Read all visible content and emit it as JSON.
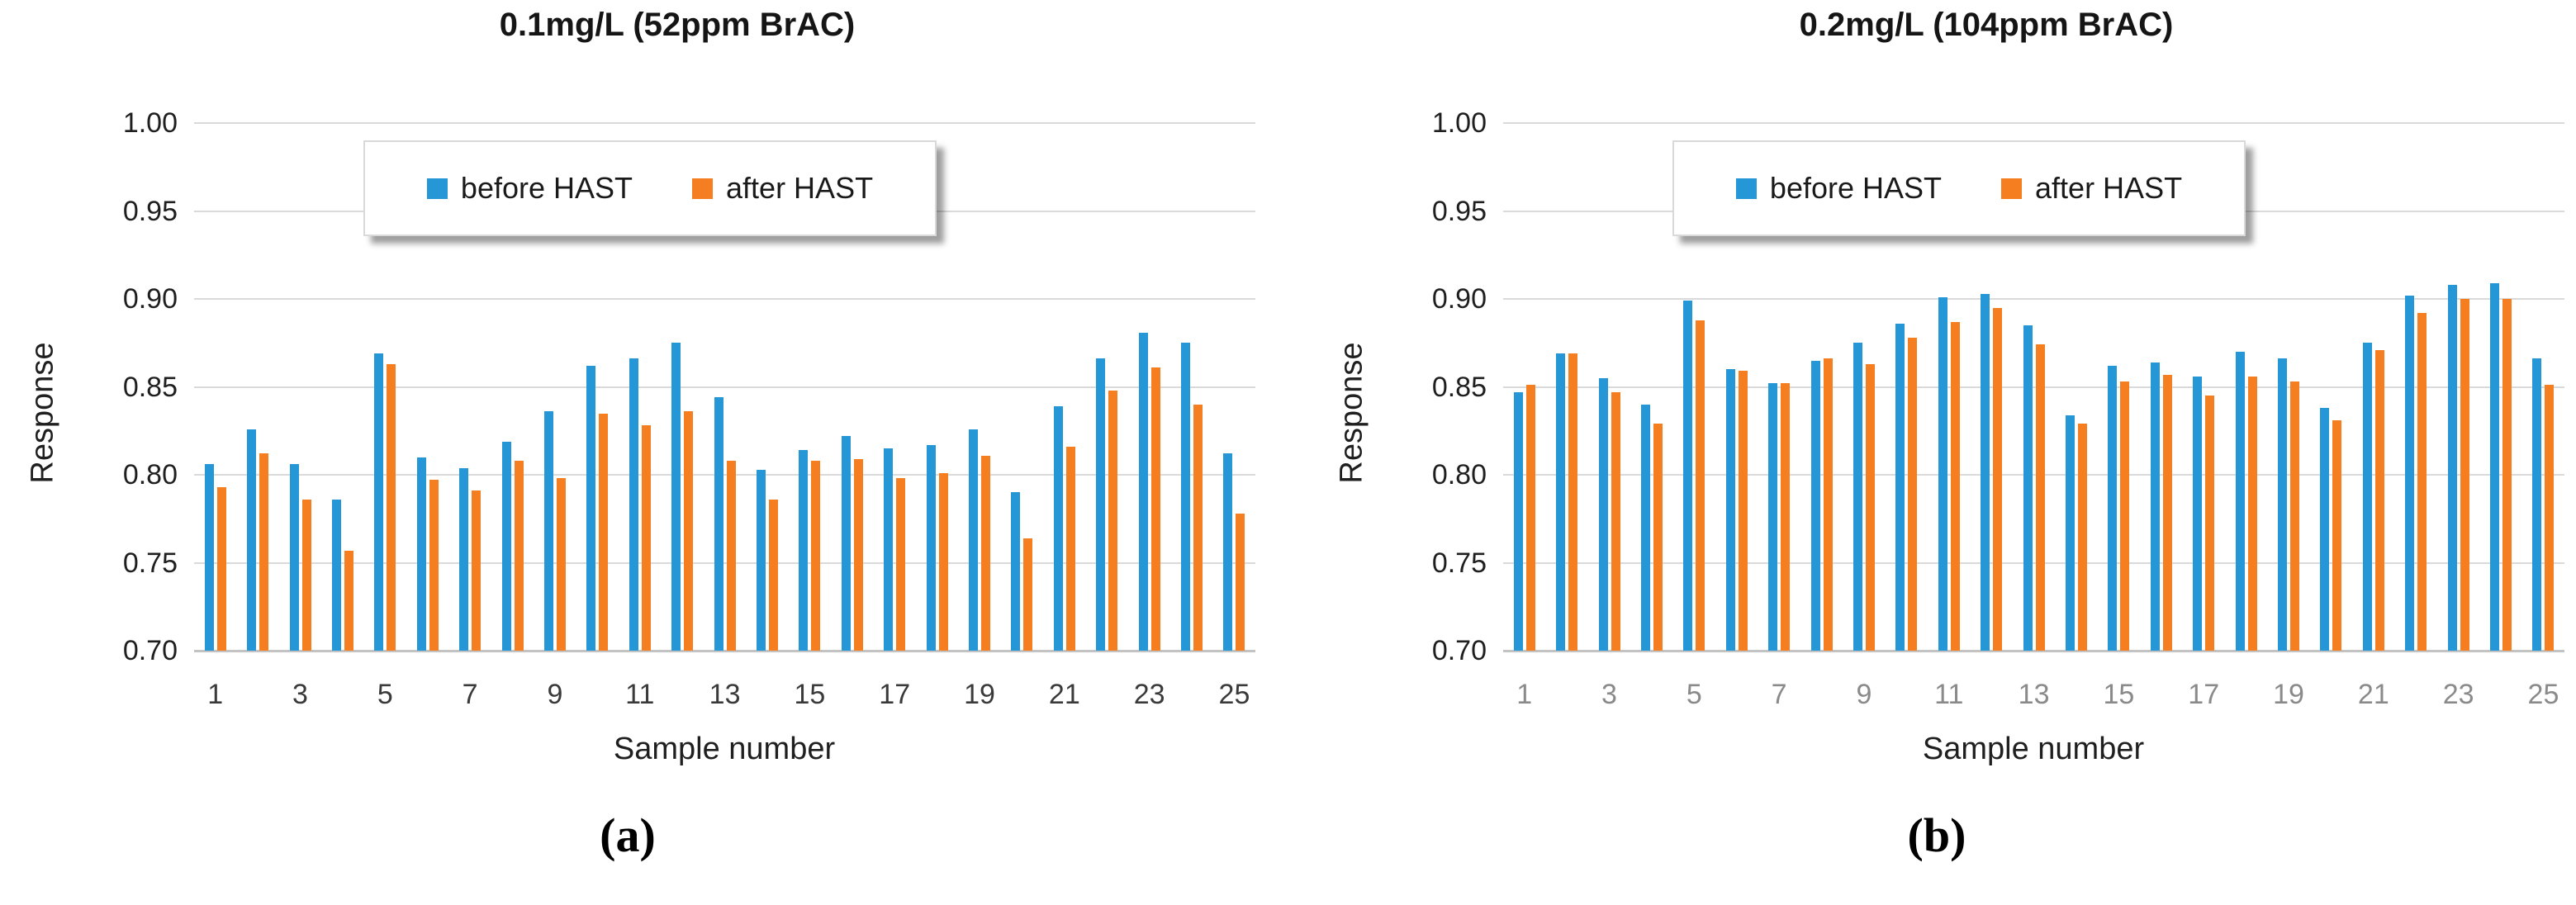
{
  "figure": {
    "caption_a": "(a)",
    "caption_b": "(b)"
  },
  "legend": {
    "before_label": "before HAST",
    "after_label": "after HAST"
  },
  "colors": {
    "before": "#2697d6",
    "after": "#f57e20",
    "gridline": "#dadada",
    "axis_text": "#1f1f1f",
    "x_ticks_chart_a": "#3a3a3a",
    "x_ticks_chart_b": "#8a8a8a"
  },
  "chart_data": [
    {
      "type": "bar",
      "title": "0.1mg/L (52ppm BrAC)",
      "xlabel": "Sample number",
      "ylabel": "Response",
      "caption": "(a)",
      "ylim": [
        0.7,
        1.0
      ],
      "yticks": [
        "1.00",
        "0.95",
        "0.90",
        "0.85",
        "0.80",
        "0.75",
        "0.70"
      ],
      "categories": [
        1,
        2,
        3,
        4,
        5,
        6,
        7,
        8,
        9,
        10,
        11,
        12,
        13,
        14,
        15,
        16,
        17,
        18,
        19,
        20,
        21,
        22,
        23,
        24,
        25
      ],
      "x_tick_labels": [
        "1",
        "3",
        "5",
        "7",
        "9",
        "11",
        "13",
        "15",
        "17",
        "19",
        "21",
        "23",
        "25"
      ],
      "grid": true,
      "legend_position": "top-center",
      "x_tick_color": "#3a3a3a",
      "series": [
        {
          "name": "before HAST",
          "color": "#2697d6",
          "values": [
            0.806,
            0.826,
            0.806,
            0.786,
            0.869,
            0.81,
            0.804,
            0.819,
            0.836,
            0.862,
            0.866,
            0.875,
            0.844,
            0.803,
            0.814,
            0.822,
            0.815,
            0.817,
            0.826,
            0.79,
            0.839,
            0.866,
            0.881,
            0.875,
            0.812
          ]
        },
        {
          "name": "after HAST",
          "color": "#f57e20",
          "values": [
            0.793,
            0.812,
            0.786,
            0.757,
            0.863,
            0.797,
            0.791,
            0.808,
            0.798,
            0.835,
            0.828,
            0.836,
            0.808,
            0.786,
            0.808,
            0.809,
            0.798,
            0.801,
            0.811,
            0.764,
            0.816,
            0.848,
            0.861,
            0.84,
            0.778
          ]
        }
      ]
    },
    {
      "type": "bar",
      "title": "0.2mg/L (104ppm BrAC)",
      "xlabel": "Sample number",
      "ylabel": "Response",
      "caption": "(b)",
      "ylim": [
        0.7,
        1.0
      ],
      "yticks": [
        "1.00",
        "0.95",
        "0.90",
        "0.85",
        "0.80",
        "0.75",
        "0.70"
      ],
      "categories": [
        1,
        2,
        3,
        4,
        5,
        6,
        7,
        8,
        9,
        10,
        11,
        12,
        13,
        14,
        15,
        16,
        17,
        18,
        19,
        20,
        21,
        22,
        23,
        24,
        25
      ],
      "x_tick_labels": [
        "1",
        "3",
        "5",
        "7",
        "9",
        "11",
        "13",
        "15",
        "17",
        "19",
        "21",
        "23",
        "25"
      ],
      "grid": true,
      "legend_position": "top-center",
      "x_tick_color": "#8a8a8a",
      "series": [
        {
          "name": "before HAST",
          "color": "#2697d6",
          "values": [
            0.847,
            0.869,
            0.855,
            0.84,
            0.899,
            0.86,
            0.852,
            0.865,
            0.875,
            0.886,
            0.901,
            0.903,
            0.885,
            0.834,
            0.862,
            0.864,
            0.856,
            0.87,
            0.866,
            0.838,
            0.875,
            0.902,
            0.908,
            0.909,
            0.866
          ]
        },
        {
          "name": "after HAST",
          "color": "#f57e20",
          "values": [
            0.851,
            0.869,
            0.847,
            0.829,
            0.888,
            0.859,
            0.852,
            0.866,
            0.863,
            0.878,
            0.887,
            0.895,
            0.874,
            0.829,
            0.853,
            0.857,
            0.845,
            0.856,
            0.853,
            0.831,
            0.871,
            0.892,
            0.9,
            0.9,
            0.851
          ]
        }
      ]
    }
  ]
}
